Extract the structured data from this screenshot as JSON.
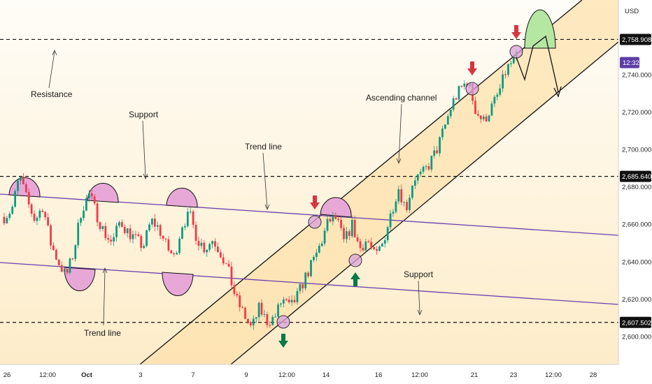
{
  "chart_data": {
    "type": "candlestick",
    "currency": "USD",
    "ylim": [
      2585,
      2780
    ],
    "x_ticks": [
      "26",
      "12:00",
      "Oct",
      "3",
      "7",
      "9",
      "12:00",
      "14",
      "16",
      "12:00",
      "21",
      "23",
      "12:00",
      "28"
    ],
    "y_ticks": [
      "2,600.000",
      "2,620.000",
      "2,640.000",
      "2,660.000",
      "2,680.000",
      "2,700.000",
      "2,720.000",
      "2,740.000"
    ],
    "levels": [
      {
        "label": "2,758.908",
        "value": 2758.908,
        "kind": "resistance"
      },
      {
        "label": "2,685.640",
        "value": 2685.64,
        "kind": "support"
      },
      {
        "label": "2,607.502",
        "value": 2607.502,
        "kind": "support"
      }
    ],
    "countdown": "12:32",
    "last_price": 2752.5,
    "candle_path": [
      2664,
      2668,
      2686,
      2672,
      2662,
      2670,
      2650,
      2640,
      2632,
      2645,
      2668,
      2676,
      2665,
      2655,
      2650,
      2662,
      2656,
      2652,
      2648,
      2662,
      2658,
      2648,
      2642,
      2660,
      2665,
      2652,
      2647,
      2652,
      2645,
      2635,
      2620,
      2612,
      2604,
      2615,
      2608,
      2610,
      2620,
      2615,
      2622,
      2632,
      2640,
      2650,
      2662,
      2663,
      2650,
      2660,
      2647,
      2652,
      2642,
      2650,
      2665,
      2680,
      2668,
      2685,
      2686,
      2692,
      2700,
      2712,
      2725,
      2732,
      2737,
      2721,
      2715,
      2722,
      2730,
      2743,
      2748,
      2752
    ],
    "annotations": [
      "Resistance",
      "Support",
      "Trend line",
      "Ascending channel",
      "Support",
      "Trend line"
    ]
  },
  "colors": {
    "up": "#089981",
    "down": "#f23645",
    "trend_line": "#6c3fae",
    "channel_fill": "#fde3b3",
    "arrow_up": "#0a7a4a",
    "arrow_down": "#d63640",
    "highlight": "#e7a3d6",
    "projection": "#b5e6a2"
  }
}
